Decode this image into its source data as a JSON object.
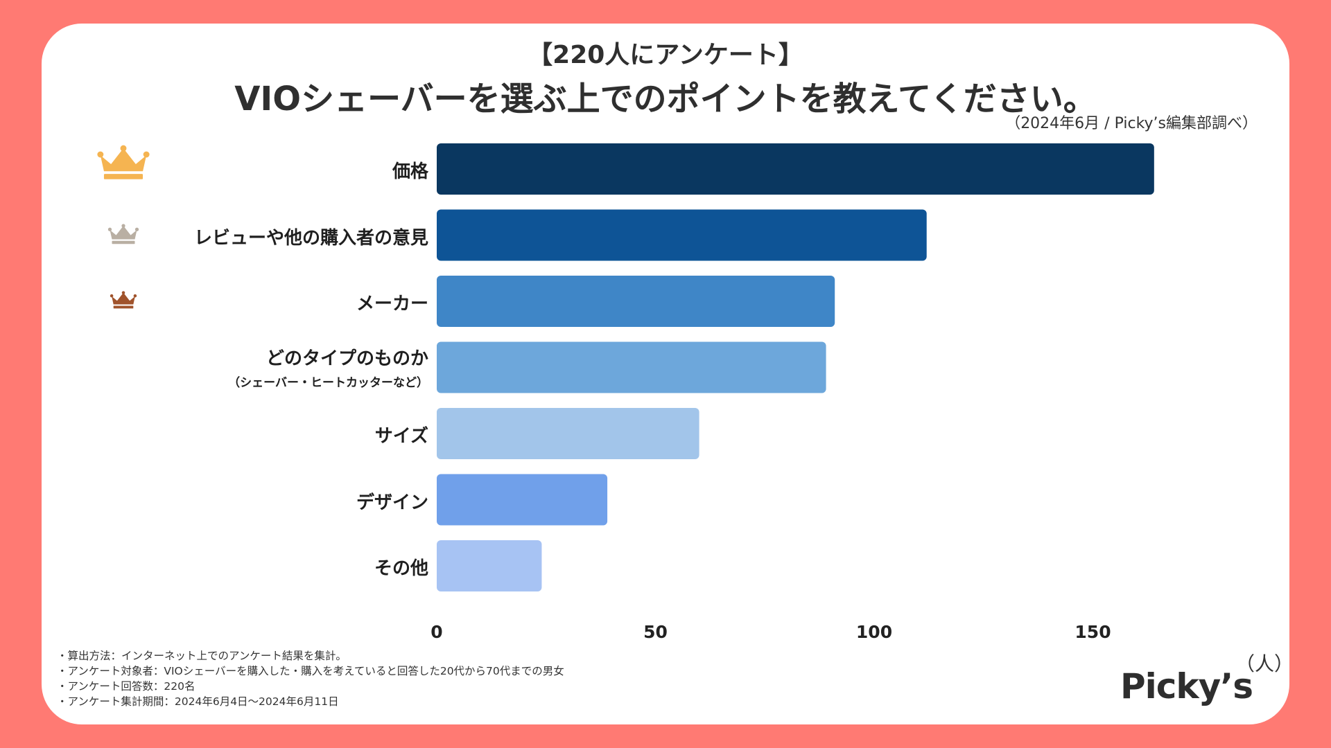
{
  "header": {
    "subtitle": "【220人にアンケート】",
    "title": "VIOシェーバーを選ぶ上でのポイントを教えてください。",
    "source": "（2024年6月 / Picky’s編集部調べ）"
  },
  "chart_data": {
    "type": "bar",
    "orientation": "horizontal",
    "categories": [
      {
        "label": "価格",
        "sub": ""
      },
      {
        "label": "レビューや他の購入者の意見",
        "sub": ""
      },
      {
        "label": "メーカー",
        "sub": ""
      },
      {
        "label": "どのタイプのものか",
        "sub": "（シェーバー・ヒートカッターなど）"
      },
      {
        "label": "サイズ",
        "sub": ""
      },
      {
        "label": "デザイン",
        "sub": ""
      },
      {
        "label": "その他",
        "sub": ""
      }
    ],
    "values": [
      164,
      112,
      91,
      89,
      60,
      39,
      24
    ],
    "colors": [
      "#0a3760",
      "#0e5496",
      "#3f86c7",
      "#6da7db",
      "#a2c5ea",
      "#70a0ea",
      "#a7c3f3"
    ],
    "xlim": [
      0,
      175
    ],
    "xticks": [
      "0",
      "50",
      "100",
      "150"
    ],
    "xtick_values": [
      0,
      50,
      100,
      150
    ],
    "unit_label": "（人）",
    "rank_crowns": [
      {
        "rank": 1,
        "color": "#f5b451"
      },
      {
        "rank": 2,
        "color": "#b9afa3"
      },
      {
        "rank": 3,
        "color": "#a0532c"
      }
    ]
  },
  "notes": [
    "・算出方法：インターネット上でのアンケート結果を集計。",
    "・アンケート対象者：VIOシェーバーを購入した・購入を考えていると回答した20代から70代までの男女",
    "・アンケート回答数：220名",
    "・アンケート集計期間：2024年6月4日〜2024年6月11日"
  ],
  "brand": {
    "logo": "Picky’s"
  }
}
